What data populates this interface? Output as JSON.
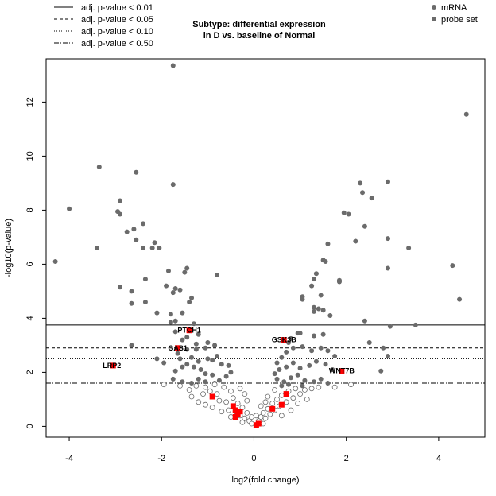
{
  "chart_data": {
    "type": "scatter",
    "title_lines": [
      "Subtype: differential expression",
      "in D vs. baseline of Normal"
    ],
    "xlabel": "log2(fold change)",
    "ylabel": "-log10(p-value)",
    "xlim": [
      -4.5,
      5.0
    ],
    "ylim": [
      -0.4,
      13.6
    ],
    "x_ticks": [
      -4,
      -2,
      0,
      2,
      4
    ],
    "y_ticks": [
      0,
      2,
      4,
      6,
      8,
      10,
      12
    ],
    "colors": {
      "mrna": "#6b6b6b",
      "probe_set": "#ff0000",
      "line": "#000000"
    },
    "threshold_legend": {
      "position": "top-left",
      "entries": [
        {
          "label": "adj. p-value < 0.01",
          "dash": "solid",
          "y": 3.75
        },
        {
          "label": "adj. p-value < 0.05",
          "dash": "dashed",
          "y": 2.9
        },
        {
          "label": "adj. p-value < 0.10",
          "dash": "dotted",
          "y": 2.5
        },
        {
          "label": "adj. p-value < 0.50",
          "dash": "dotdash",
          "y": 1.6
        }
      ]
    },
    "point_legend": {
      "position": "top-right",
      "entries": [
        {
          "label": "mRNA",
          "shape": "circle"
        },
        {
          "label": "probe set",
          "shape": "square"
        }
      ]
    },
    "series": [
      {
        "name": "mRNA",
        "points": [
          [
            -1.75,
            13.35
          ],
          [
            4.6,
            11.55
          ],
          [
            -3.35,
            9.6
          ],
          [
            -2.55,
            9.4
          ],
          [
            -1.75,
            8.95
          ],
          [
            2.3,
            9.0
          ],
          [
            2.9,
            9.05
          ],
          [
            -4.0,
            8.05
          ],
          [
            -2.9,
            8.35
          ],
          [
            -2.95,
            7.95
          ],
          [
            -2.9,
            7.85
          ],
          [
            2.35,
            8.65
          ],
          [
            2.55,
            8.45
          ],
          [
            1.95,
            7.9
          ],
          [
            2.05,
            7.85
          ],
          [
            -2.4,
            7.5
          ],
          [
            -2.75,
            7.2
          ],
          [
            -2.6,
            7.3
          ],
          [
            -2.55,
            6.9
          ],
          [
            -2.15,
            6.8
          ],
          [
            -2.2,
            6.6
          ],
          [
            -2.05,
            6.6
          ],
          [
            -2.4,
            6.6
          ],
          [
            -3.4,
            6.6
          ],
          [
            -4.3,
            6.1
          ],
          [
            2.4,
            7.4
          ],
          [
            2.2,
            6.85
          ],
          [
            2.9,
            6.95
          ],
          [
            1.6,
            6.75
          ],
          [
            1.55,
            6.1
          ],
          [
            1.5,
            6.15
          ],
          [
            3.35,
            6.6
          ],
          [
            4.3,
            5.95
          ],
          [
            2.9,
            5.85
          ],
          [
            -0.8,
            5.6
          ],
          [
            -1.45,
            5.85
          ],
          [
            -1.5,
            5.7
          ],
          [
            -1.85,
            5.75
          ],
          [
            -2.35,
            5.45
          ],
          [
            -2.9,
            5.15
          ],
          [
            -1.9,
            5.2
          ],
          [
            -1.7,
            5.1
          ],
          [
            -1.6,
            5.05
          ],
          [
            -2.65,
            5.0
          ],
          [
            -1.75,
            4.95
          ],
          [
            -2.35,
            4.6
          ],
          [
            -2.65,
            4.55
          ],
          [
            -1.35,
            4.75
          ],
          [
            -1.4,
            4.6
          ],
          [
            -2.1,
            4.2
          ],
          [
            -1.8,
            4.15
          ],
          [
            -1.55,
            4.2
          ],
          [
            1.35,
            5.65
          ],
          [
            1.3,
            5.45
          ],
          [
            1.25,
            5.2
          ],
          [
            1.05,
            4.8
          ],
          [
            1.05,
            4.7
          ],
          [
            1.45,
            4.85
          ],
          [
            1.3,
            4.4
          ],
          [
            1.4,
            4.35
          ],
          [
            1.3,
            4.25
          ],
          [
            1.5,
            4.3
          ],
          [
            1.85,
            5.4
          ],
          [
            1.85,
            5.35
          ],
          [
            1.65,
            4.1
          ],
          [
            4.45,
            4.7
          ],
          [
            2.4,
            3.9
          ],
          [
            3.5,
            3.75
          ],
          [
            2.95,
            3.7
          ],
          [
            -1.7,
            3.9
          ],
          [
            -1.8,
            3.85
          ],
          [
            -1.3,
            3.8
          ],
          [
            -1.2,
            3.4
          ],
          [
            -1.45,
            3.3
          ],
          [
            -1.55,
            3.2
          ],
          [
            -1.7,
            3.5
          ],
          [
            -1.25,
            2.85
          ],
          [
            -1.05,
            2.9
          ],
          [
            -1.45,
            2.85
          ],
          [
            -1.65,
            2.7
          ],
          [
            -1.6,
            2.5
          ],
          [
            -1.35,
            2.55
          ],
          [
            -1.2,
            2.4
          ],
          [
            -1.0,
            2.5
          ],
          [
            -0.9,
            2.45
          ],
          [
            -0.8,
            2.6
          ],
          [
            -0.7,
            2.3
          ],
          [
            -0.55,
            2.25
          ],
          [
            -0.5,
            2.0
          ],
          [
            -0.6,
            1.85
          ],
          [
            -0.75,
            1.7
          ],
          [
            -0.9,
            1.9
          ],
          [
            -1.05,
            1.95
          ],
          [
            -1.15,
            2.1
          ],
          [
            -1.3,
            2.2
          ],
          [
            -1.45,
            2.3
          ],
          [
            -1.55,
            2.2
          ],
          [
            -1.7,
            2.05
          ],
          [
            -1.75,
            1.75
          ],
          [
            -1.55,
            1.65
          ],
          [
            -1.35,
            1.6
          ],
          [
            -1.2,
            1.75
          ],
          [
            -1.05,
            1.65
          ],
          [
            -0.85,
            1.6
          ],
          [
            -1.95,
            2.35
          ],
          [
            -2.1,
            2.5
          ],
          [
            -2.65,
            3.0
          ],
          [
            -1.0,
            3.1
          ],
          [
            -1.25,
            3.05
          ],
          [
            -0.85,
            3.0
          ],
          [
            0.95,
            3.45
          ],
          [
            1.0,
            3.45
          ],
          [
            1.3,
            3.35
          ],
          [
            1.5,
            3.4
          ],
          [
            0.8,
            3.25
          ],
          [
            0.75,
            3.1
          ],
          [
            0.85,
            2.9
          ],
          [
            1.05,
            2.95
          ],
          [
            1.25,
            2.8
          ],
          [
            1.45,
            2.9
          ],
          [
            1.6,
            2.8
          ],
          [
            1.75,
            2.6
          ],
          [
            0.7,
            2.75
          ],
          [
            0.6,
            2.55
          ],
          [
            0.5,
            2.35
          ],
          [
            0.55,
            2.1
          ],
          [
            0.7,
            2.2
          ],
          [
            0.85,
            2.35
          ],
          [
            1.0,
            2.15
          ],
          [
            1.2,
            2.25
          ],
          [
            1.35,
            2.4
          ],
          [
            1.55,
            2.3
          ],
          [
            1.7,
            2.1
          ],
          [
            0.45,
            1.95
          ],
          [
            0.5,
            1.75
          ],
          [
            0.65,
            1.65
          ],
          [
            0.8,
            1.8
          ],
          [
            0.95,
            1.9
          ],
          [
            1.1,
            1.7
          ],
          [
            1.3,
            1.65
          ],
          [
            1.45,
            1.75
          ],
          [
            1.6,
            1.6
          ],
          [
            2.5,
            3.1
          ],
          [
            2.8,
            2.9
          ],
          [
            2.9,
            2.6
          ],
          [
            2.75,
            2.05
          ],
          [
            0.6,
            1.5
          ],
          [
            0.75,
            1.55
          ],
          [
            1.05,
            1.5
          ]
        ]
      },
      {
        "name": "mRNA-nonsignificant",
        "points": [
          [
            -1.6,
            1.5
          ],
          [
            -1.4,
            1.35
          ],
          [
            -1.1,
            1.2
          ],
          [
            -0.95,
            1.3
          ],
          [
            -0.8,
            1.2
          ],
          [
            -0.65,
            1.45
          ],
          [
            -0.5,
            1.3
          ],
          [
            -0.3,
            1.4
          ],
          [
            -1.2,
            0.9
          ],
          [
            -1.05,
            0.8
          ],
          [
            -0.9,
            0.7
          ],
          [
            -0.75,
            0.95
          ],
          [
            -0.6,
            0.9
          ],
          [
            -0.45,
            1.05
          ],
          [
            -0.35,
            0.85
          ],
          [
            -0.55,
            0.6
          ],
          [
            -0.4,
            0.55
          ],
          [
            -0.25,
            0.7
          ],
          [
            -0.3,
            0.4
          ],
          [
            -0.2,
            0.3
          ],
          [
            -0.15,
            0.5
          ],
          [
            -0.1,
            0.2
          ],
          [
            -0.05,
            0.1
          ],
          [
            0.05,
            0.05
          ],
          [
            0.1,
            0.2
          ],
          [
            0.15,
            0.35
          ],
          [
            0.2,
            0.5
          ],
          [
            0.25,
            0.3
          ],
          [
            0.3,
            0.65
          ],
          [
            0.35,
            0.45
          ],
          [
            0.4,
            0.85
          ],
          [
            0.45,
            0.6
          ],
          [
            0.5,
            1.0
          ],
          [
            0.55,
            0.75
          ],
          [
            0.6,
            1.15
          ],
          [
            0.7,
            0.9
          ],
          [
            0.75,
            1.3
          ],
          [
            0.85,
            1.05
          ],
          [
            0.9,
            1.4
          ],
          [
            1.0,
            1.2
          ],
          [
            1.1,
            1.35
          ],
          [
            1.25,
            1.4
          ],
          [
            1.4,
            1.45
          ],
          [
            1.75,
            1.45
          ],
          [
            0.45,
            1.35
          ],
          [
            0.3,
            1.1
          ],
          [
            0.25,
            0.9
          ],
          [
            0.15,
            0.75
          ],
          [
            -0.15,
            0.95
          ],
          [
            -0.2,
            1.2
          ],
          [
            -0.85,
            1.55
          ],
          [
            -1.25,
            1.5
          ],
          [
            -0.7,
            0.55
          ],
          [
            -0.5,
            0.35
          ],
          [
            0.6,
            0.4
          ],
          [
            0.8,
            0.6
          ],
          [
            -0.05,
            0.35
          ],
          [
            0.05,
            0.4
          ],
          [
            -0.25,
            0.15
          ],
          [
            0.2,
            0.1
          ],
          [
            -1.35,
            1.1
          ],
          [
            -1.05,
            1.45
          ],
          [
            0.95,
            0.85
          ],
          [
            1.15,
            1.0
          ],
          [
            2.1,
            1.55
          ],
          [
            -1.95,
            1.55
          ]
        ]
      },
      {
        "name": "probe set",
        "points": [
          [
            -1.4,
            3.55
          ],
          [
            -1.65,
            2.9
          ],
          [
            -3.05,
            2.25
          ],
          [
            0.65,
            3.2
          ],
          [
            1.9,
            2.05
          ],
          [
            -0.9,
            1.1
          ],
          [
            -0.45,
            0.75
          ],
          [
            -0.4,
            0.6
          ],
          [
            -0.35,
            0.45
          ],
          [
            -0.4,
            0.35
          ],
          [
            -0.3,
            0.55
          ],
          [
            0.05,
            0.05
          ],
          [
            0.1,
            0.1
          ],
          [
            0.4,
            0.65
          ],
          [
            0.6,
            0.8
          ],
          [
            0.7,
            1.2
          ]
        ]
      }
    ],
    "gene_labels": [
      {
        "text": "PTCH1",
        "x": -1.4,
        "y": 3.55,
        "anchor": "middle"
      },
      {
        "text": "GAS1",
        "x": -1.65,
        "y": 2.9,
        "anchor": "middle"
      },
      {
        "text": "LRP2",
        "x": -3.05,
        "y": 2.25,
        "anchor": "end"
      },
      {
        "text": "GSK3B",
        "x": 0.65,
        "y": 3.2,
        "anchor": "middle"
      },
      {
        "text": "WNT7B",
        "x": 1.9,
        "y": 2.05,
        "anchor": "middle"
      }
    ]
  }
}
